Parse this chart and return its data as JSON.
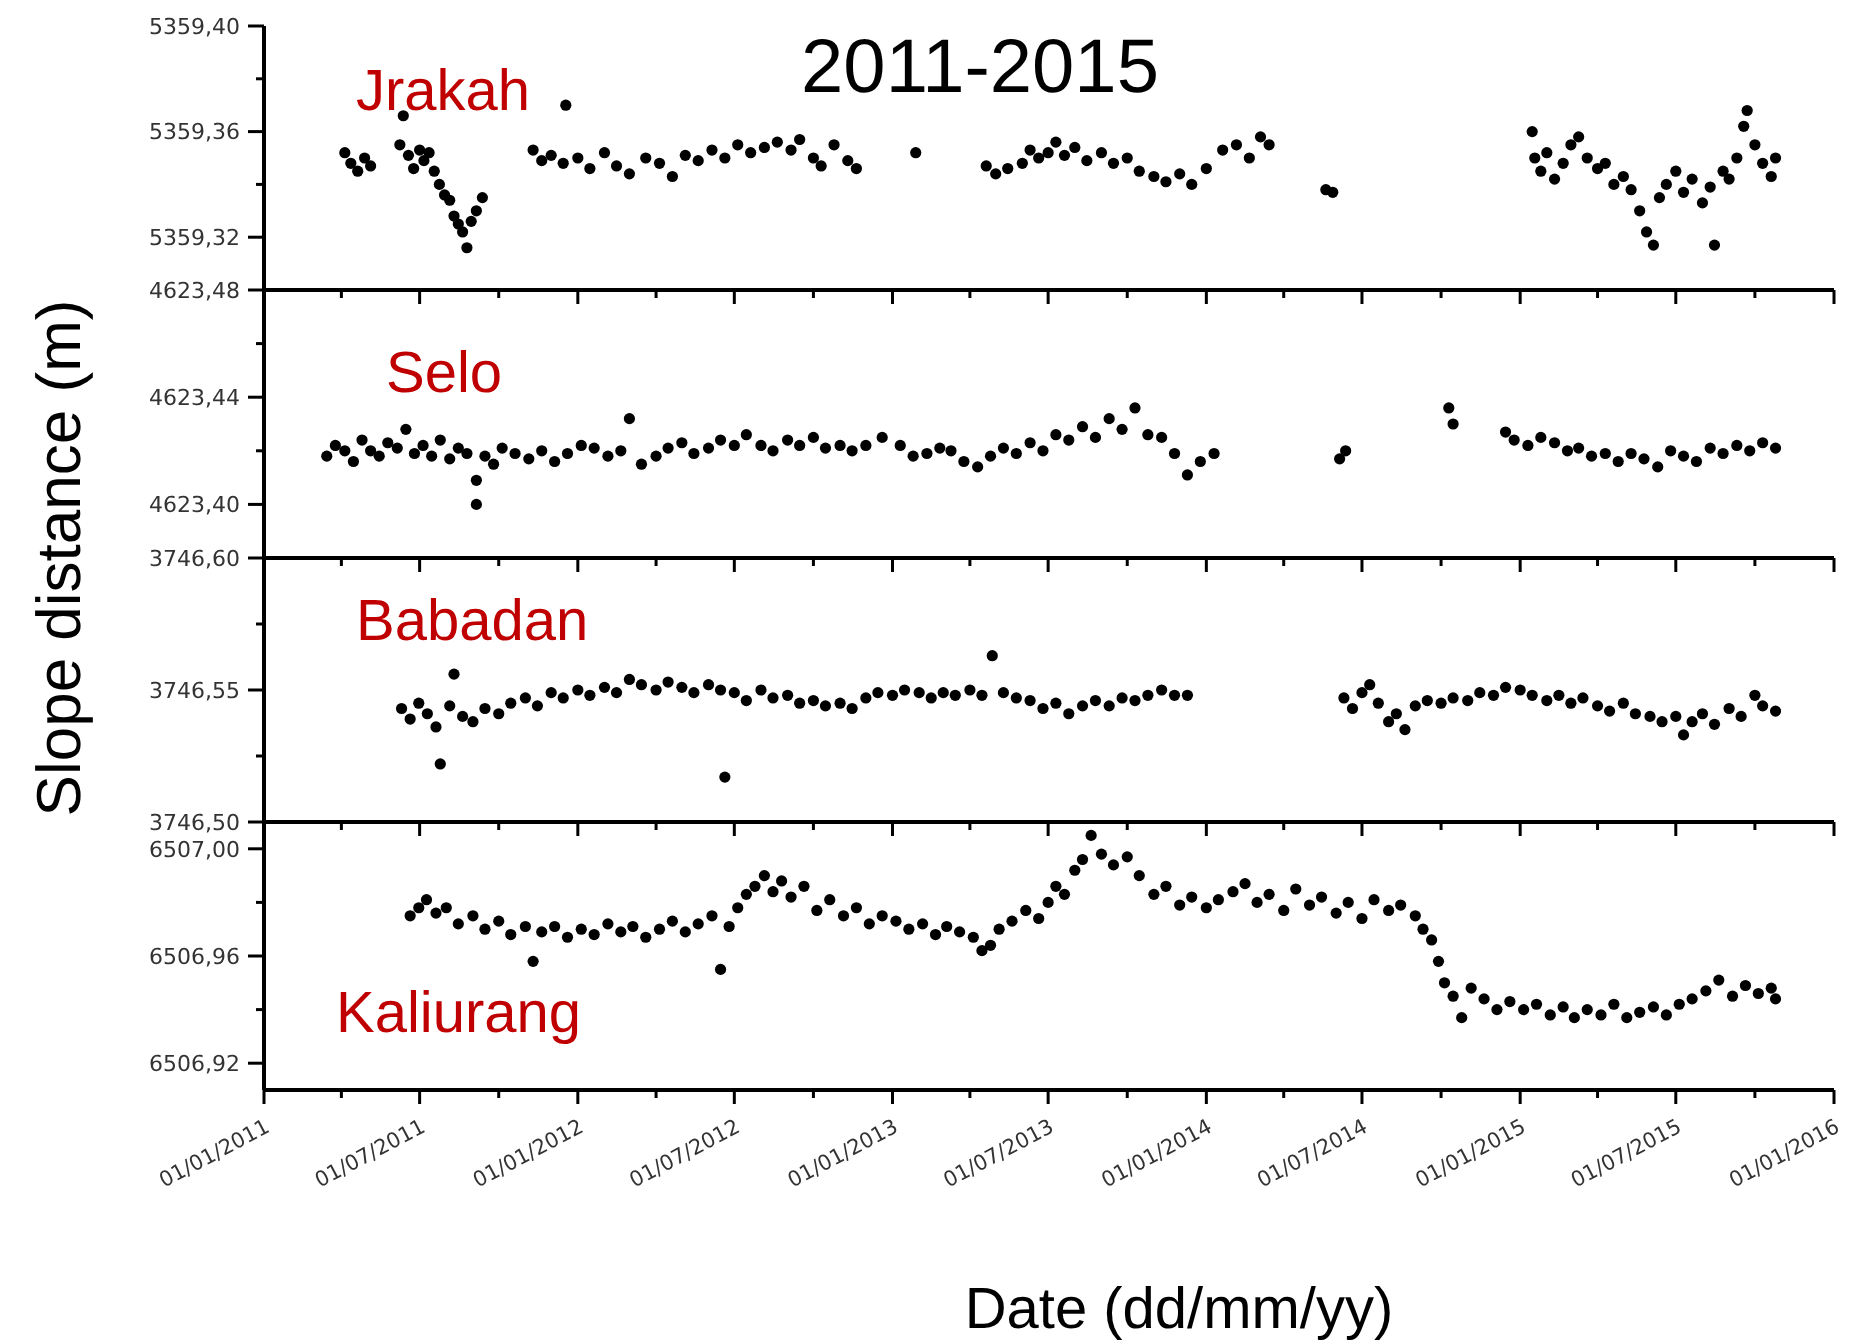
{
  "chart_data": [
    {
      "type": "scatter",
      "title": "2011-2015",
      "ylabel": "Slope distance (m)",
      "annotations": [
        "Jrakah"
      ],
      "tick_labels": "y",
      "marker": "circle",
      "grid": false,
      "xlim": [
        "2011-01-01",
        "2016-01-01"
      ],
      "xticks": [
        {
          "value": "2011-01-01",
          "label": null
        },
        {
          "value": "2011-04-01",
          "label": null
        },
        {
          "value": "2011-07-01",
          "label": null
        },
        {
          "value": "2011-10-01",
          "label": null
        },
        {
          "value": "2012-01-01",
          "label": null
        },
        {
          "value": "2012-04-01",
          "label": null
        },
        {
          "value": "2012-07-01",
          "label": null
        },
        {
          "value": "2012-10-01",
          "label": null
        },
        {
          "value": "2013-01-01",
          "label": null
        },
        {
          "value": "2013-04-01",
          "label": null
        },
        {
          "value": "2013-07-01",
          "label": null
        },
        {
          "value": "2013-10-01",
          "label": null
        },
        {
          "value": "2014-01-01",
          "label": null
        },
        {
          "value": "2014-04-01",
          "label": null
        },
        {
          "value": "2014-07-01",
          "label": null
        },
        {
          "value": "2014-10-01",
          "label": null
        },
        {
          "value": "2015-01-01",
          "label": null
        },
        {
          "value": "2015-04-01",
          "label": null
        },
        {
          "value": "2015-07-01",
          "label": null
        },
        {
          "value": "2015-10-01",
          "label": null
        },
        {
          "value": "2016-01-01",
          "label": null
        }
      ],
      "ylim": [
        5359.3,
        5359.4
      ],
      "yticks": [
        {
          "value": 5359.32,
          "label": "5359,32"
        },
        {
          "value": 5359.34,
          "label": null
        },
        {
          "value": 5359.36,
          "label": "5359,36"
        },
        {
          "value": 5359.38,
          "label": null
        },
        {
          "value": 5359.4,
          "label": "5359,40"
        }
      ],
      "series": [
        {
          "color": "#000000",
          "x": [
            "2011-04-05",
            "2011-04-12",
            "2011-04-20",
            "2011-04-28",
            "2011-05-05",
            "2011-06-08",
            "2011-06-12",
            "2011-06-18",
            "2011-06-24",
            "2011-07-01",
            "2011-07-06",
            "2011-07-12",
            "2011-07-18",
            "2011-07-24",
            "2011-07-30",
            "2011-08-05",
            "2011-08-10",
            "2011-08-15",
            "2011-08-20",
            "2011-08-25",
            "2011-08-30",
            "2011-09-05",
            "2011-09-12",
            "2011-11-10",
            "2011-11-20",
            "2011-12-01",
            "2011-12-15",
            "2011-12-18",
            "2012-01-01",
            "2012-01-15",
            "2012-02-01",
            "2012-02-15",
            "2012-03-01",
            "2012-03-20",
            "2012-04-05",
            "2012-04-20",
            "2012-05-05",
            "2012-05-20",
            "2012-06-05",
            "2012-06-20",
            "2012-07-05",
            "2012-07-20",
            "2012-08-05",
            "2012-08-20",
            "2012-09-05",
            "2012-09-15",
            "2012-10-01",
            "2012-10-10",
            "2012-10-25",
            "2012-11-10",
            "2012-11-20",
            "2013-01-28",
            "2013-04-20",
            "2013-05-01",
            "2013-05-15",
            "2013-06-01",
            "2013-06-10",
            "2013-06-20",
            "2013-07-01",
            "2013-07-10",
            "2013-07-20",
            "2013-08-01",
            "2013-08-15",
            "2013-09-01",
            "2013-09-15",
            "2013-10-01",
            "2013-10-15",
            "2013-11-01",
            "2013-11-15",
            "2013-12-01",
            "2013-12-15",
            "2014-01-01",
            "2014-01-20",
            "2014-02-05",
            "2014-02-20",
            "2014-03-05",
            "2014-03-15",
            "2014-05-20",
            "2014-05-28",
            "2015-01-15",
            "2015-01-18",
            "2015-01-25",
            "2015-02-01",
            "2015-02-10",
            "2015-02-20",
            "2015-03-01",
            "2015-03-10",
            "2015-03-20",
            "2015-04-01",
            "2015-04-10",
            "2015-04-20",
            "2015-05-01",
            "2015-05-10",
            "2015-05-20",
            "2015-05-28",
            "2015-06-05",
            "2015-06-12",
            "2015-06-20",
            "2015-07-01",
            "2015-07-10",
            "2015-07-20",
            "2015-08-01",
            "2015-08-10",
            "2015-08-15",
            "2015-08-25",
            "2015-09-01",
            "2015-09-10",
            "2015-09-18",
            "2015-09-22",
            "2015-10-01",
            "2015-10-10",
            "2015-10-20",
            "2015-10-25"
          ],
          "values": [
            5359.352,
            5359.348,
            5359.345,
            5359.35,
            5359.347,
            5359.355,
            5359.366,
            5359.351,
            5359.346,
            5359.353,
            5359.349,
            5359.352,
            5359.345,
            5359.34,
            5359.336,
            5359.334,
            5359.328,
            5359.325,
            5359.322,
            5359.316,
            5359.326,
            5359.33,
            5359.335,
            5359.353,
            5359.349,
            5359.351,
            5359.348,
            5359.37,
            5359.35,
            5359.346,
            5359.352,
            5359.347,
            5359.344,
            5359.35,
            5359.348,
            5359.343,
            5359.351,
            5359.349,
            5359.353,
            5359.35,
            5359.355,
            5359.352,
            5359.354,
            5359.356,
            5359.353,
            5359.357,
            5359.35,
            5359.347,
            5359.355,
            5359.349,
            5359.346,
            5359.352,
            5359.347,
            5359.344,
            5359.346,
            5359.348,
            5359.353,
            5359.35,
            5359.352,
            5359.356,
            5359.351,
            5359.354,
            5359.349,
            5359.352,
            5359.348,
            5359.35,
            5359.345,
            5359.343,
            5359.341,
            5359.344,
            5359.34,
            5359.346,
            5359.353,
            5359.355,
            5359.35,
            5359.358,
            5359.355,
            5359.338,
            5359.337,
            5359.36,
            5359.35,
            5359.345,
            5359.352,
            5359.342,
            5359.348,
            5359.355,
            5359.358,
            5359.35,
            5359.346,
            5359.348,
            5359.34,
            5359.343,
            5359.338,
            5359.33,
            5359.322,
            5359.317,
            5359.335,
            5359.34,
            5359.345,
            5359.337,
            5359.342,
            5359.333,
            5359.339,
            5359.317,
            5359.345,
            5359.342,
            5359.35,
            5359.362,
            5359.368,
            5359.355,
            5359.348,
            5359.343,
            5359.35
          ]
        }
      ]
    },
    {
      "type": "scatter",
      "annotations": [
        "Selo"
      ],
      "tick_labels": "y",
      "marker": "circle",
      "grid": false,
      "xlim": [
        "2011-01-01",
        "2016-01-01"
      ],
      "xticks": [
        {
          "value": "2011-01-01",
          "label": null
        },
        {
          "value": "2011-04-01",
          "label": null
        },
        {
          "value": "2011-07-01",
          "label": null
        },
        {
          "value": "2011-10-01",
          "label": null
        },
        {
          "value": "2012-01-01",
          "label": null
        },
        {
          "value": "2012-04-01",
          "label": null
        },
        {
          "value": "2012-07-01",
          "label": null
        },
        {
          "value": "2012-10-01",
          "label": null
        },
        {
          "value": "2013-01-01",
          "label": null
        },
        {
          "value": "2013-04-01",
          "label": null
        },
        {
          "value": "2013-07-01",
          "label": null
        },
        {
          "value": "2013-10-01",
          "label": null
        },
        {
          "value": "2014-01-01",
          "label": null
        },
        {
          "value": "2014-04-01",
          "label": null
        },
        {
          "value": "2014-07-01",
          "label": null
        },
        {
          "value": "2014-10-01",
          "label": null
        },
        {
          "value": "2015-01-01",
          "label": null
        },
        {
          "value": "2015-04-01",
          "label": null
        },
        {
          "value": "2015-07-01",
          "label": null
        },
        {
          "value": "2015-10-01",
          "label": null
        },
        {
          "value": "2016-01-01",
          "label": null
        }
      ],
      "ylim": [
        4623.38,
        4623.48
      ],
      "yticks": [
        {
          "value": 4623.4,
          "label": "4623,40"
        },
        {
          "value": 4623.42,
          "label": null
        },
        {
          "value": 4623.44,
          "label": "4623,44"
        },
        {
          "value": 4623.46,
          "label": null
        },
        {
          "value": 4623.48,
          "label": "4623,48"
        }
      ],
      "series": [
        {
          "color": "#000000",
          "x": [
            "2011-03-15",
            "2011-03-25",
            "2011-04-05",
            "2011-04-15",
            "2011-04-25",
            "2011-05-05",
            "2011-05-15",
            "2011-05-25",
            "2011-06-05",
            "2011-06-15",
            "2011-06-25",
            "2011-07-05",
            "2011-07-15",
            "2011-07-25",
            "2011-08-05",
            "2011-08-15",
            "2011-08-25",
            "2011-09-05",
            "2011-09-05",
            "2011-09-15",
            "2011-09-25",
            "2011-10-05",
            "2011-10-20",
            "2011-11-05",
            "2011-11-20",
            "2011-12-05",
            "2011-12-20",
            "2012-01-05",
            "2012-01-20",
            "2012-02-05",
            "2012-02-20",
            "2012-03-01",
            "2012-03-15",
            "2012-04-01",
            "2012-04-15",
            "2012-05-01",
            "2012-05-15",
            "2012-06-01",
            "2012-06-15",
            "2012-07-01",
            "2012-07-15",
            "2012-08-01",
            "2012-08-15",
            "2012-09-01",
            "2012-09-15",
            "2012-10-01",
            "2012-10-15",
            "2012-11-01",
            "2012-11-15",
            "2012-12-01",
            "2012-12-20",
            "2013-01-10",
            "2013-01-25",
            "2013-02-10",
            "2013-02-25",
            "2013-03-10",
            "2013-03-25",
            "2013-04-10",
            "2013-04-25",
            "2013-05-10",
            "2013-05-25",
            "2013-06-10",
            "2013-06-25",
            "2013-07-10",
            "2013-07-25",
            "2013-08-10",
            "2013-08-25",
            "2013-09-10",
            "2013-09-25",
            "2013-10-10",
            "2013-10-25",
            "2013-11-10",
            "2013-11-25",
            "2013-12-10",
            "2013-12-25",
            "2014-01-10",
            "2014-06-05",
            "2014-06-12",
            "2014-10-10",
            "2014-10-15",
            "2014-12-15",
            "2014-12-25",
            "2015-01-10",
            "2015-01-25",
            "2015-02-10",
            "2015-02-25",
            "2015-03-10",
            "2015-03-25",
            "2015-04-10",
            "2015-04-25",
            "2015-05-10",
            "2015-05-25",
            "2015-06-10",
            "2015-06-25",
            "2015-07-10",
            "2015-07-25",
            "2015-08-10",
            "2015-08-25",
            "2015-09-10",
            "2015-09-25",
            "2015-10-10",
            "2015-10-25"
          ],
          "values": [
            4623.418,
            4623.422,
            4623.42,
            4623.416,
            4623.424,
            4623.42,
            4623.418,
            4623.423,
            4623.421,
            4623.428,
            4623.419,
            4623.422,
            4623.418,
            4623.424,
            4623.417,
            4623.421,
            4623.419,
            4623.409,
            4623.4,
            4623.418,
            4623.415,
            4623.421,
            4623.419,
            4623.417,
            4623.42,
            4623.416,
            4623.419,
            4623.422,
            4623.421,
            4623.418,
            4623.42,
            4623.432,
            4623.415,
            4623.418,
            4623.421,
            4623.423,
            4623.419,
            4623.421,
            4623.424,
            4623.422,
            4623.426,
            4623.422,
            4623.42,
            4623.424,
            4623.422,
            4623.425,
            4623.421,
            4623.422,
            4623.42,
            4623.422,
            4623.425,
            4623.422,
            4623.418,
            4623.419,
            4623.421,
            4623.42,
            4623.416,
            4623.414,
            4623.418,
            4623.421,
            4623.419,
            4623.423,
            4623.42,
            4623.426,
            4623.424,
            4623.429,
            4623.425,
            4623.432,
            4623.428,
            4623.436,
            4623.426,
            4623.425,
            4623.419,
            4623.411,
            4623.416,
            4623.419,
            4623.417,
            4623.42,
            4623.436,
            4623.43,
            4623.427,
            4623.424,
            4623.422,
            4623.425,
            4623.423,
            4623.42,
            4623.421,
            4623.418,
            4623.419,
            4623.416,
            4623.419,
            4623.417,
            4623.414,
            4623.42,
            4623.418,
            4623.416,
            4623.421,
            4623.419,
            4623.422,
            4623.42,
            4623.423,
            4623.421
          ]
        }
      ]
    },
    {
      "type": "scatter",
      "annotations": [
        "Babadan"
      ],
      "tick_labels": "y",
      "marker": "circle",
      "grid": false,
      "xlim": [
        "2011-01-01",
        "2016-01-01"
      ],
      "xticks": [
        {
          "value": "2011-01-01",
          "label": null
        },
        {
          "value": "2011-04-01",
          "label": null
        },
        {
          "value": "2011-07-01",
          "label": null
        },
        {
          "value": "2011-10-01",
          "label": null
        },
        {
          "value": "2012-01-01",
          "label": null
        },
        {
          "value": "2012-04-01",
          "label": null
        },
        {
          "value": "2012-07-01",
          "label": null
        },
        {
          "value": "2012-10-01",
          "label": null
        },
        {
          "value": "2013-01-01",
          "label": null
        },
        {
          "value": "2013-04-01",
          "label": null
        },
        {
          "value": "2013-07-01",
          "label": null
        },
        {
          "value": "2013-10-01",
          "label": null
        },
        {
          "value": "2014-01-01",
          "label": null
        },
        {
          "value": "2014-04-01",
          "label": null
        },
        {
          "value": "2014-07-01",
          "label": null
        },
        {
          "value": "2014-10-01",
          "label": null
        },
        {
          "value": "2015-01-01",
          "label": null
        },
        {
          "value": "2015-04-01",
          "label": null
        },
        {
          "value": "2015-07-01",
          "label": null
        },
        {
          "value": "2015-10-01",
          "label": null
        },
        {
          "value": "2016-01-01",
          "label": null
        }
      ],
      "ylim": [
        3746.5,
        3746.6
      ],
      "yticks": [
        {
          "value": 3746.5,
          "label": "3746,50"
        },
        {
          "value": 3746.525,
          "label": null
        },
        {
          "value": 3746.55,
          "label": "3746,55"
        },
        {
          "value": 3746.575,
          "label": null
        },
        {
          "value": 3746.6,
          "label": "3746,60"
        }
      ],
      "series": [
        {
          "color": "#000000",
          "x": [
            "2011-06-10",
            "2011-06-20",
            "2011-06-30",
            "2011-07-10",
            "2011-07-20",
            "2011-07-25",
            "2011-08-05",
            "2011-08-10",
            "2011-08-20",
            "2011-09-01",
            "2011-09-15",
            "2011-10-01",
            "2011-10-15",
            "2011-11-01",
            "2011-11-15",
            "2011-12-01",
            "2011-12-15",
            "2012-01-01",
            "2012-01-15",
            "2012-02-01",
            "2012-02-15",
            "2012-03-01",
            "2012-03-15",
            "2012-04-01",
            "2012-04-15",
            "2012-05-01",
            "2012-05-15",
            "2012-06-01",
            "2012-06-15",
            "2012-06-20",
            "2012-07-01",
            "2012-07-15",
            "2012-08-01",
            "2012-08-15",
            "2012-09-01",
            "2012-09-15",
            "2012-10-01",
            "2012-10-15",
            "2012-11-01",
            "2012-11-15",
            "2012-12-01",
            "2012-12-15",
            "2013-01-01",
            "2013-01-15",
            "2013-02-01",
            "2013-02-15",
            "2013-03-01",
            "2013-03-15",
            "2013-04-01",
            "2013-04-15",
            "2013-04-27",
            "2013-05-10",
            "2013-05-25",
            "2013-06-10",
            "2013-06-25",
            "2013-07-10",
            "2013-07-25",
            "2013-08-10",
            "2013-08-25",
            "2013-09-10",
            "2013-09-25",
            "2013-10-10",
            "2013-10-25",
            "2013-11-10",
            "2013-11-25",
            "2013-12-10",
            "2014-06-10",
            "2014-06-20",
            "2014-07-01",
            "2014-07-10",
            "2014-07-20",
            "2014-08-01",
            "2014-08-10",
            "2014-08-20",
            "2014-09-01",
            "2014-09-15",
            "2014-10-01",
            "2014-10-15",
            "2014-11-01",
            "2014-11-15",
            "2014-12-01",
            "2014-12-15",
            "2015-01-01",
            "2015-01-15",
            "2015-02-01",
            "2015-02-15",
            "2015-03-01",
            "2015-03-15",
            "2015-04-01",
            "2015-04-15",
            "2015-05-01",
            "2015-05-15",
            "2015-06-01",
            "2015-06-15",
            "2015-07-01",
            "2015-07-10",
            "2015-07-20",
            "2015-08-01",
            "2015-08-15",
            "2015-09-01",
            "2015-09-15",
            "2015-10-01",
            "2015-10-10",
            "2015-10-25"
          ],
          "values": [
            3746.543,
            3746.539,
            3746.545,
            3746.541,
            3746.536,
            3746.522,
            3746.544,
            3746.556,
            3746.54,
            3746.538,
            3746.543,
            3746.541,
            3746.545,
            3746.547,
            3746.544,
            3746.549,
            3746.547,
            3746.55,
            3746.548,
            3746.551,
            3746.549,
            3746.554,
            3746.552,
            3746.55,
            3746.553,
            3746.551,
            3746.549,
            3746.552,
            3746.55,
            3746.517,
            3746.549,
            3746.546,
            3746.55,
            3746.547,
            3746.548,
            3746.545,
            3746.546,
            3746.544,
            3746.545,
            3746.543,
            3746.547,
            3746.549,
            3746.548,
            3746.55,
            3746.549,
            3746.547,
            3746.549,
            3746.548,
            3746.55,
            3746.548,
            3746.563,
            3746.549,
            3746.547,
            3746.546,
            3746.543,
            3746.545,
            3746.541,
            3746.544,
            3746.546,
            3746.544,
            3746.547,
            3746.546,
            3746.548,
            3746.55,
            3746.548,
            3746.548,
            3746.547,
            3746.543,
            3746.549,
            3746.552,
            3746.545,
            3746.538,
            3746.541,
            3746.535,
            3746.544,
            3746.546,
            3746.545,
            3746.547,
            3746.546,
            3746.549,
            3746.548,
            3746.551,
            3746.55,
            3746.548,
            3746.546,
            3746.548,
            3746.545,
            3746.547,
            3746.544,
            3746.542,
            3746.545,
            3746.541,
            3746.54,
            3746.538,
            3746.54,
            3746.533,
            3746.538,
            3746.541,
            3746.537,
            3746.543,
            3746.54,
            3746.548,
            3746.544,
            3746.542
          ]
        }
      ]
    },
    {
      "type": "scatter",
      "xlabel": "Date (dd/mm/yy)",
      "annotations": [
        "Kaliurang"
      ],
      "marker": "circle",
      "grid": false,
      "xlim": [
        "2011-01-01",
        "2016-01-01"
      ],
      "xticks": [
        {
          "value": "2011-01-01",
          "label": "01/01/2011"
        },
        {
          "value": "2011-04-01",
          "label": null
        },
        {
          "value": "2011-07-01",
          "label": "01/07/2011"
        },
        {
          "value": "2011-10-01",
          "label": null
        },
        {
          "value": "2012-01-01",
          "label": "01/01/2012"
        },
        {
          "value": "2012-04-01",
          "label": null
        },
        {
          "value": "2012-07-01",
          "label": "01/07/2012"
        },
        {
          "value": "2012-10-01",
          "label": null
        },
        {
          "value": "2013-01-01",
          "label": "01/01/2013"
        },
        {
          "value": "2013-04-01",
          "label": null
        },
        {
          "value": "2013-07-01",
          "label": "01/07/2013"
        },
        {
          "value": "2013-10-01",
          "label": null
        },
        {
          "value": "2014-01-01",
          "label": "01/01/2014"
        },
        {
          "value": "2014-04-01",
          "label": null
        },
        {
          "value": "2014-07-01",
          "label": "01/07/2014"
        },
        {
          "value": "2014-10-01",
          "label": null
        },
        {
          "value": "2015-01-01",
          "label": "01/01/2015"
        },
        {
          "value": "2015-04-01",
          "label": null
        },
        {
          "value": "2015-07-01",
          "label": "01/07/2015"
        },
        {
          "value": "2015-10-01",
          "label": null
        },
        {
          "value": "2016-01-01",
          "label": "01/01/2016"
        }
      ],
      "ylim": [
        6506.91,
        6507.01
      ],
      "yticks": [
        {
          "value": 6506.92,
          "label": "6506,92"
        },
        {
          "value": 6506.94,
          "label": null
        },
        {
          "value": 6506.96,
          "label": "6506,96"
        },
        {
          "value": 6506.98,
          "label": null
        },
        {
          "value": 6507.0,
          "label": "6507,00"
        }
      ],
      "series": [
        {
          "color": "#000000",
          "x": [
            "2011-06-20",
            "2011-06-30",
            "2011-07-09",
            "2011-07-20",
            "2011-08-01",
            "2011-08-15",
            "2011-09-01",
            "2011-09-15",
            "2011-10-01",
            "2011-10-15",
            "2011-11-01",
            "2011-11-10",
            "2011-11-20",
            "2011-12-05",
            "2011-12-20",
            "2012-01-05",
            "2012-01-20",
            "2012-02-05",
            "2012-02-20",
            "2012-03-05",
            "2012-03-20",
            "2012-04-05",
            "2012-04-20",
            "2012-05-05",
            "2012-05-20",
            "2012-06-05",
            "2012-06-15",
            "2012-06-25",
            "2012-07-05",
            "2012-07-15",
            "2012-07-25",
            "2012-08-05",
            "2012-08-15",
            "2012-08-25",
            "2012-09-05",
            "2012-09-20",
            "2012-10-05",
            "2012-10-20",
            "2012-11-05",
            "2012-11-20",
            "2012-12-05",
            "2012-12-20",
            "2013-01-05",
            "2013-01-20",
            "2013-02-05",
            "2013-02-20",
            "2013-03-05",
            "2013-03-20",
            "2013-04-05",
            "2013-04-15",
            "2013-04-25",
            "2013-05-05",
            "2013-05-20",
            "2013-06-05",
            "2013-06-20",
            "2013-07-01",
            "2013-07-10",
            "2013-07-20",
            "2013-08-01",
            "2013-08-10",
            "2013-08-20",
            "2013-09-01",
            "2013-09-15",
            "2013-10-01",
            "2013-10-15",
            "2013-11-01",
            "2013-11-15",
            "2013-12-01",
            "2013-12-15",
            "2014-01-01",
            "2014-01-15",
            "2014-02-01",
            "2014-02-15",
            "2014-03-01",
            "2014-03-15",
            "2014-04-01",
            "2014-04-15",
            "2014-05-01",
            "2014-05-15",
            "2014-06-01",
            "2014-06-15",
            "2014-07-01",
            "2014-07-15",
            "2014-08-01",
            "2014-08-15",
            "2014-09-01",
            "2014-09-10",
            "2014-09-20",
            "2014-09-28",
            "2014-10-05",
            "2014-10-15",
            "2014-10-25",
            "2014-11-05",
            "2014-11-20",
            "2014-12-05",
            "2014-12-20",
            "2015-01-05",
            "2015-01-20",
            "2015-02-05",
            "2015-02-20",
            "2015-03-05",
            "2015-03-20",
            "2015-04-05",
            "2015-04-20",
            "2015-05-05",
            "2015-05-20",
            "2015-06-05",
            "2015-06-20",
            "2015-07-05",
            "2015-07-20",
            "2015-08-05",
            "2015-08-20",
            "2015-09-05",
            "2015-09-20",
            "2015-10-05",
            "2015-10-20",
            "2015-10-25"
          ],
          "values": [
            6506.975,
            6506.978,
            6506.981,
            6506.976,
            6506.978,
            6506.972,
            6506.975,
            6506.97,
            6506.973,
            6506.968,
            6506.971,
            6506.958,
            6506.969,
            6506.971,
            6506.967,
            6506.97,
            6506.968,
            6506.972,
            6506.969,
            6506.971,
            6506.967,
            6506.97,
            6506.973,
            6506.969,
            6506.972,
            6506.975,
            6506.955,
            6506.971,
            6506.978,
            6506.983,
            6506.986,
            6506.99,
            6506.984,
            6506.988,
            6506.982,
            6506.986,
            6506.977,
            6506.981,
            6506.975,
            6506.978,
            6506.972,
            6506.975,
            6506.973,
            6506.97,
            6506.972,
            6506.968,
            6506.971,
            6506.969,
            6506.967,
            6506.962,
            6506.964,
            6506.97,
            6506.973,
            6506.977,
            6506.974,
            6506.98,
            6506.986,
            6506.983,
            6506.992,
            6506.996,
            6507.005,
            6506.998,
            6506.994,
            6506.997,
            6506.99,
            6506.983,
            6506.986,
            6506.979,
            6506.982,
            6506.978,
            6506.981,
            6506.984,
            6506.987,
            6506.98,
            6506.983,
            6506.977,
            6506.985,
            6506.979,
            6506.982,
            6506.976,
            6506.98,
            6506.974,
            6506.981,
            6506.977,
            6506.979,
            6506.975,
            6506.97,
            6506.966,
            6506.958,
            6506.95,
            6506.945,
            6506.937,
            6506.948,
            6506.944,
            6506.94,
            6506.943,
            6506.94,
            6506.942,
            6506.938,
            6506.941,
            6506.937,
            6506.94,
            6506.938,
            6506.942,
            6506.937,
            6506.939,
            6506.941,
            6506.938,
            6506.942,
            6506.944,
            6506.947,
            6506.951,
            6506.945,
            6506.949,
            6506.946,
            6506.948,
            6506.944
          ]
        }
      ]
    }
  ]
}
